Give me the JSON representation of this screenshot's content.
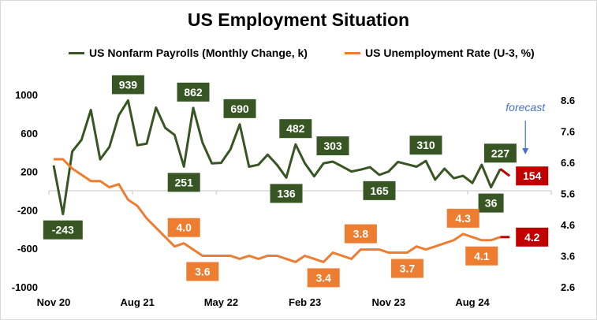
{
  "chart_data": {
    "type": "line",
    "title": "US Employment Situation",
    "x": [
      "Nov 20",
      "Dec 20",
      "Jan 21",
      "Feb 21",
      "Mar 21",
      "Apr 21",
      "May 21",
      "Jun 21",
      "Jul 21",
      "Aug 21",
      "Sep 21",
      "Oct 21",
      "Nov 21",
      "Dec 21",
      "Jan 22",
      "Feb 22",
      "Mar 22",
      "Apr 22",
      "May 22",
      "Jun 22",
      "Jul 22",
      "Aug 22",
      "Sep 22",
      "Oct 22",
      "Nov 22",
      "Dec 22",
      "Jan 23",
      "Feb 23",
      "Mar 23",
      "Apr 23",
      "May 23",
      "Jun 23",
      "Jul 23",
      "Aug 23",
      "Sep 23",
      "Oct 23",
      "Nov 23",
      "Dec 23",
      "Jan 24",
      "Feb 24",
      "Mar 24",
      "Apr 24",
      "May 24",
      "Jun 24",
      "Jul 24",
      "Aug 24",
      "Sep 24",
      "Oct 24",
      "Nov 24",
      "Dec 24"
    ],
    "x_tick_labels": [
      "Nov 20",
      "Aug 21",
      "May 22",
      "Feb 23",
      "Nov 23",
      "Aug 24"
    ],
    "left_axis": {
      "ticks": [
        "1000",
        "600",
        "200",
        "-200",
        "-600",
        "-1000"
      ],
      "ylim": [
        -1000,
        1000
      ]
    },
    "right_axis": {
      "ticks": [
        "8.6",
        "7.6",
        "6.6",
        "5.6",
        "4.6",
        "3.6",
        "2.6"
      ],
      "ylim": [
        2.6,
        8.6
      ]
    },
    "legend_position": "top",
    "grid": false,
    "series": [
      {
        "name": "US Nonfarm Payrolls (Monthly Change, k)",
        "axis": "left",
        "color": "#375623",
        "values": [
          264,
          -243,
          408,
          530,
          840,
          326,
          457,
          784,
          939,
          473,
          490,
          865,
          653,
          580,
          251,
          862,
          500,
          285,
          290,
          430,
          690,
          250,
          270,
          375,
          270,
          136,
          482,
          285,
          150,
          285,
          303,
          253,
          200,
          220,
          245,
          165,
          200,
          300,
          275,
          250,
          310,
          115,
          230,
          130,
          155,
          80,
          270,
          36,
          227,
          154
        ],
        "labels": [
          {
            "index": 1,
            "text": "-243",
            "position": "below"
          },
          {
            "index": 8,
            "text": "939",
            "position": "above"
          },
          {
            "index": 14,
            "text": "251",
            "position": "below"
          },
          {
            "index": 15,
            "text": "862",
            "position": "above"
          },
          {
            "index": 20,
            "text": "690",
            "position": "above"
          },
          {
            "index": 25,
            "text": "136",
            "position": "below"
          },
          {
            "index": 26,
            "text": "482",
            "position": "above"
          },
          {
            "index": 30,
            "text": "303",
            "position": "above"
          },
          {
            "index": 35,
            "text": "165",
            "position": "below"
          },
          {
            "index": 40,
            "text": "310",
            "position": "above"
          },
          {
            "index": 47,
            "text": "36",
            "position": "below"
          },
          {
            "index": 48,
            "text": "227",
            "position": "above"
          },
          {
            "index": 49,
            "text": "154",
            "position": "right",
            "forecast": true
          }
        ]
      },
      {
        "name": "US Unemployment Rate (U-3, %)",
        "axis": "right",
        "color": "#ED7D31",
        "values": [
          6.7,
          6.7,
          6.4,
          6.2,
          6.0,
          6.0,
          5.8,
          5.9,
          5.4,
          5.2,
          4.8,
          4.5,
          4.2,
          3.9,
          4.0,
          3.8,
          3.6,
          3.6,
          3.6,
          3.6,
          3.5,
          3.6,
          3.5,
          3.6,
          3.6,
          3.5,
          3.4,
          3.6,
          3.5,
          3.4,
          3.7,
          3.6,
          3.5,
          3.8,
          3.8,
          3.8,
          3.7,
          3.7,
          3.7,
          3.9,
          3.8,
          3.9,
          4.0,
          4.1,
          4.3,
          4.2,
          4.1,
          4.1,
          4.2,
          4.2
        ],
        "labels": [
          {
            "index": 14,
            "text": "4.0",
            "position": "above"
          },
          {
            "index": 16,
            "text": "3.6",
            "position": "below"
          },
          {
            "index": 29,
            "text": "3.4",
            "position": "below"
          },
          {
            "index": 33,
            "text": "3.8",
            "position": "above"
          },
          {
            "index": 38,
            "text": "3.7",
            "position": "below"
          },
          {
            "index": 44,
            "text": "4.3",
            "position": "above"
          },
          {
            "index": 46,
            "text": "4.1",
            "position": "below"
          },
          {
            "index": 49,
            "text": "4.2",
            "position": "right",
            "forecast": true
          }
        ]
      }
    ],
    "forecast_color": "#C00000",
    "annotation": {
      "text": "forecast",
      "color": "#4472C4"
    }
  }
}
